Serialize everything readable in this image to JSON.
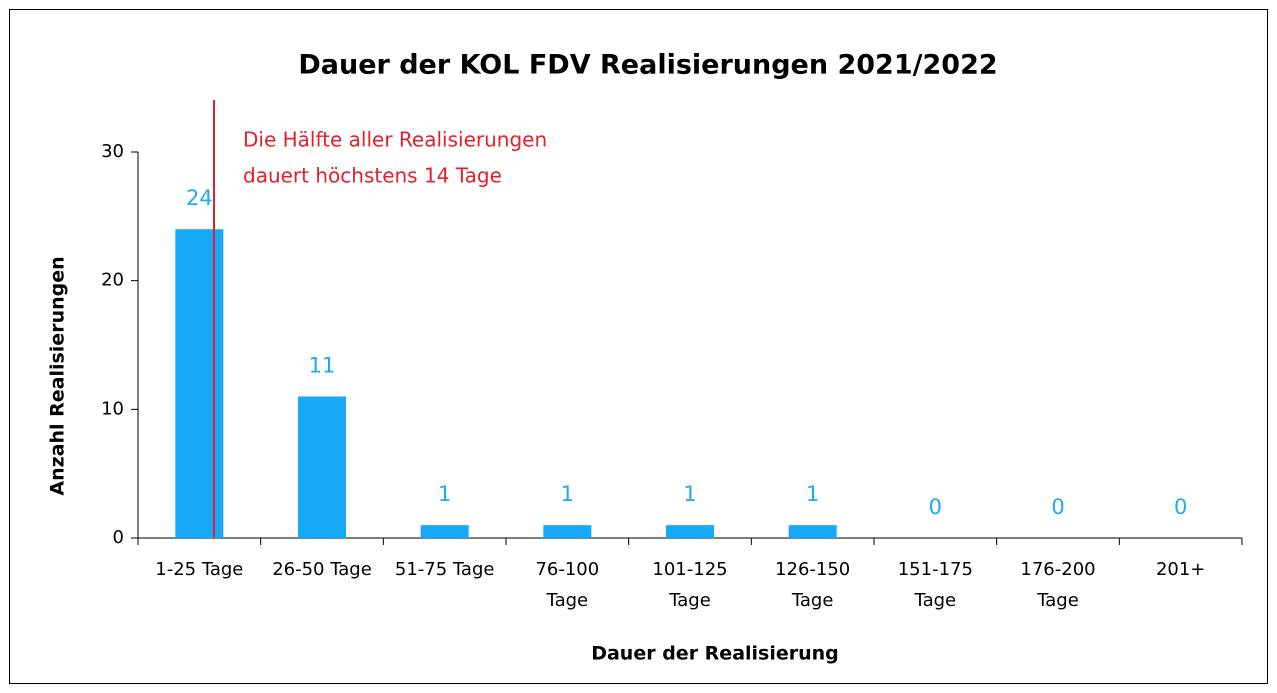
{
  "chart_data": {
    "type": "bar",
    "title": "Dauer der KOL FDV Realisierungen 2021/2022",
    "x_label": "Dauer der Realisierung",
    "y_label": "Anzahl Realisierungen",
    "categories": [
      "1-25 Tage",
      "26-50 Tage",
      "51-75 Tage",
      "76-100\nTage",
      "101-125\nTage",
      "126-150\nTage",
      "151-175\nTage",
      "176-200\nTage",
      "201+"
    ],
    "values": [
      24,
      11,
      1,
      1,
      1,
      1,
      0,
      0,
      0
    ],
    "color": "#17a9f7",
    "label_color": "#1ea8f5",
    "ylim": [
      0,
      30
    ],
    "yticks": [
      0,
      10,
      20,
      30
    ],
    "grid": false,
    "annotation": {
      "lines": [
        "Die Hälfte aller Realisierungen",
        "dauert höchstens 14 Tage"
      ],
      "color": "#e3202b"
    }
  }
}
